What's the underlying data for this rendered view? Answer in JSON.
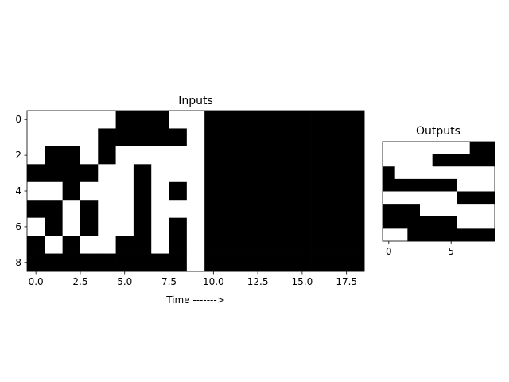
{
  "chart_data": [
    {
      "type": "heatmap",
      "title": "Inputs",
      "xlabel": "Time ------->",
      "ylabel": "",
      "colors": {
        "1": "#000000",
        "0": "#ffffff"
      },
      "xlim": [
        -0.5,
        18.5
      ],
      "ylim": [
        8.5,
        -0.5
      ],
      "xticks": [
        0.0,
        2.5,
        5.0,
        7.5,
        10.0,
        12.5,
        15.0,
        17.5
      ],
      "xtick_labels": [
        "0.0",
        "2.5",
        "5.0",
        "7.5",
        "10.0",
        "12.5",
        "15.0",
        "17.5"
      ],
      "yticks": [
        0,
        2,
        4,
        6,
        8
      ],
      "ytick_labels": [
        "0",
        "2",
        "4",
        "6",
        "8"
      ],
      "grid": [
        [
          0,
          0,
          0,
          0,
          0,
          1,
          1,
          1,
          0,
          0,
          1,
          1,
          1,
          1,
          1,
          1,
          1,
          1,
          1
        ],
        [
          0,
          0,
          0,
          0,
          1,
          1,
          1,
          1,
          1,
          0,
          1,
          1,
          1,
          1,
          1,
          1,
          1,
          1,
          1
        ],
        [
          0,
          1,
          1,
          0,
          1,
          0,
          0,
          0,
          0,
          0,
          1,
          1,
          1,
          1,
          1,
          1,
          1,
          1,
          1
        ],
        [
          1,
          1,
          1,
          1,
          0,
          0,
          1,
          0,
          0,
          0,
          1,
          1,
          1,
          1,
          1,
          1,
          1,
          1,
          1
        ],
        [
          0,
          0,
          1,
          0,
          0,
          0,
          1,
          0,
          1,
          0,
          1,
          1,
          1,
          1,
          1,
          1,
          1,
          1,
          1
        ],
        [
          1,
          1,
          0,
          1,
          0,
          0,
          1,
          0,
          0,
          0,
          1,
          1,
          1,
          1,
          1,
          1,
          1,
          1,
          1
        ],
        [
          0,
          1,
          0,
          1,
          0,
          0,
          1,
          0,
          1,
          0,
          1,
          1,
          1,
          1,
          1,
          1,
          1,
          1,
          1
        ],
        [
          1,
          0,
          1,
          0,
          0,
          1,
          1,
          0,
          1,
          0,
          1,
          1,
          1,
          1,
          1,
          1,
          1,
          1,
          1
        ],
        [
          1,
          1,
          1,
          1,
          1,
          1,
          1,
          1,
          1,
          0,
          1,
          1,
          1,
          1,
          1,
          1,
          1,
          1,
          1
        ]
      ]
    },
    {
      "type": "heatmap",
      "title": "Outputs",
      "xlabel": "",
      "ylabel": "",
      "colors": {
        "1": "#000000",
        "0": "#ffffff"
      },
      "xlim": [
        -0.5,
        8.5
      ],
      "ylim": [
        7.5,
        -0.5
      ],
      "xticks": [
        0,
        5
      ],
      "xtick_labels": [
        "0",
        "5"
      ],
      "yticks": [],
      "ytick_labels": [],
      "grid": [
        [
          0,
          0,
          0,
          0,
          0,
          0,
          0,
          1,
          1
        ],
        [
          0,
          0,
          0,
          0,
          1,
          1,
          1,
          1,
          1
        ],
        [
          1,
          0,
          0,
          0,
          0,
          0,
          0,
          0,
          0
        ],
        [
          1,
          1,
          1,
          1,
          1,
          1,
          0,
          0,
          0
        ],
        [
          0,
          0,
          0,
          0,
          0,
          0,
          1,
          1,
          1
        ],
        [
          1,
          1,
          1,
          0,
          0,
          0,
          0,
          0,
          0
        ],
        [
          1,
          1,
          1,
          1,
          1,
          1,
          0,
          0,
          0
        ],
        [
          0,
          0,
          1,
          1,
          1,
          1,
          1,
          1,
          1
        ]
      ]
    }
  ]
}
